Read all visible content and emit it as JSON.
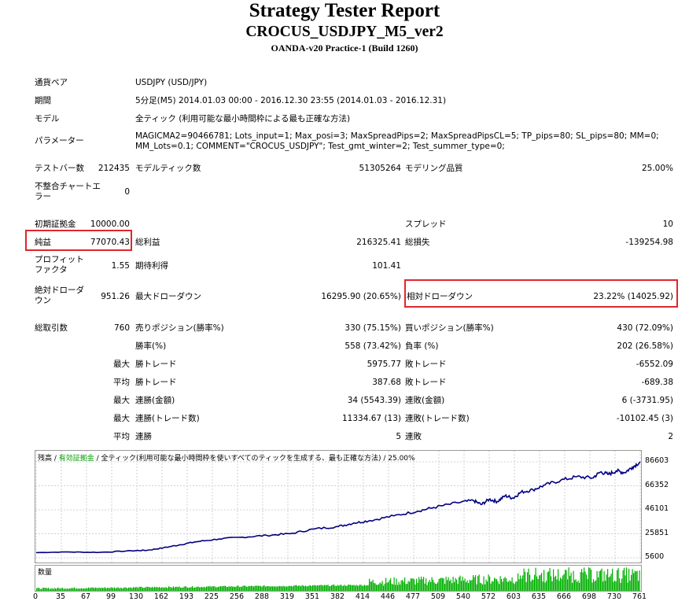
{
  "report": {
    "title": "Strategy Tester Report",
    "subtitle": "CROCUS_USDJPY_M5_ver2",
    "server": "OANDA-v20 Practice-1 (Build 1260)"
  },
  "info": {
    "pair_label": "通貨ペア",
    "pair_value": "USDJPY (USD/JPY)",
    "period_label": "期間",
    "period_value": "5分足(M5) 2014.01.03 00:00 - 2016.12.30 23:55 (2014.01.03 - 2016.12.31)",
    "model_label": "モデル",
    "model_value": "全ティック (利用可能な最小時間枠による最も正確な方法)",
    "params_label": "パラメーター",
    "params_value": "MAGICMA2=90466781; Lots_input=1; Max_posi=3; MaxSpreadPips=2; MaxSpreadPipsCL=5; TP_pips=80; SL_pips=80; MM=0; MM_Lots=0.1; COMMENT=\"CROCUS_USDJPY\"; Test_gmt_winter=2; Test_summer_type=0;"
  },
  "stats": {
    "bars_label": "テストバー数",
    "bars_value": "212435",
    "model_ticks_label": "モデルティック数",
    "model_ticks_value": "51305264",
    "quality_label": "モデリング品質",
    "quality_value": "25.00%",
    "mismatch_label": "不整合チャートエラー",
    "mismatch_value": "0",
    "deposit_label": "初期証拠金",
    "deposit_value": "10000.00",
    "spread_label": "スプレッド",
    "spread_value": "10",
    "net_label": "純益",
    "net_value": "77070.43",
    "gross_profit_label": "総利益",
    "gross_profit_value": "216325.41",
    "gross_loss_label": "総損失",
    "gross_loss_value": "-139254.98",
    "pf_label": "プロフィットファクタ",
    "pf_value": "1.55",
    "expected_label": "期待利得",
    "expected_value": "101.41",
    "abs_dd_label": "絶対ドローダウン",
    "abs_dd_value": "951.26",
    "max_dd_label": "最大ドローダウン",
    "max_dd_value": "16295.90 (20.65%)",
    "rel_dd_label": "相対ドローダウン",
    "rel_dd_value": "23.22% (14025.92)",
    "total_trades_label": "総取引数",
    "total_trades_value": "760",
    "short_label": "売りポジション(勝率%)",
    "short_value": "330 (75.15%)",
    "long_label": "買いポジション(勝率%)",
    "long_value": "430 (72.09%)",
    "winrate_label": "勝率(%)",
    "winrate_value": "558 (73.42%)",
    "lossrate_label": "負率 (%)",
    "lossrate_value": "202 (26.58%)",
    "max": "最大",
    "avg": "平均",
    "largest_win_label": "勝トレード",
    "largest_win_value": "5975.77",
    "largest_loss_label": "敗トレード",
    "largest_loss_value": "-6552.09",
    "avg_win_label": "勝トレード",
    "avg_win_value": "387.68",
    "avg_loss_label": "敗トレード",
    "avg_loss_value": "-689.38",
    "max_consec_wins_label": "連勝(金額)",
    "max_consec_wins_value": "34 (5543.39)",
    "max_consec_losses_label": "連敗(金額)",
    "max_consec_losses_value": "6 (-3731.95)",
    "max_consec_profit_label": "連勝(トレード数)",
    "max_consec_profit_value": "11334.67 (13)",
    "max_consec_loss_label": "連敗(トレード数)",
    "max_consec_loss_value": "-10102.45 (3)",
    "avg_consec_wins_label": "連勝",
    "avg_consec_wins_value": "5",
    "avg_consec_losses_label": "連敗",
    "avg_consec_losses_value": "2"
  },
  "chart": {
    "legend_balance": "残高",
    "legend_sep": " / ",
    "legend_equity": "有効証拠金",
    "legend_rest": " / 全ティック(利用可能な最小時間枠を使いすべてのティックを生成する、最も正確な方法) / 25.00%",
    "volume_label": "数量",
    "balance_color": "#000080",
    "volume_color": "#00b000",
    "highlight_color": "#e0262c"
  },
  "chart_data": {
    "type": "line",
    "y_ticks": [
      "86603",
      "66352",
      "46101",
      "25851",
      "5600"
    ],
    "x_ticks": [
      "0",
      "35",
      "67",
      "99",
      "130",
      "162",
      "193",
      "225",
      "256",
      "288",
      "319",
      "351",
      "382",
      "414",
      "446",
      "477",
      "509",
      "540",
      "572",
      "603",
      "635",
      "666",
      "698",
      "730",
      "761"
    ],
    "ylim": [
      5600,
      86603
    ],
    "xlim": [
      0,
      760
    ],
    "series": [
      {
        "x": [
          0,
          40,
          80,
          120,
          140,
          160,
          180,
          200,
          230,
          260,
          290,
          320,
          350,
          380,
          400,
          420,
          450,
          480,
          500,
          530,
          550,
          560,
          570,
          580,
          590,
          600,
          610,
          625,
          640,
          660,
          680,
          700,
          710,
          720,
          730,
          740,
          750,
          760
        ],
        "values": [
          10000,
          10500,
          10200,
          11500,
          12000,
          14000,
          16500,
          19000,
          21500,
          23000,
          24500,
          26000,
          30000,
          32000,
          35000,
          37000,
          41000,
          45000,
          48000,
          52000,
          54000,
          50500,
          55000,
          53000,
          58000,
          56000,
          61000,
          63000,
          67000,
          71000,
          74000,
          73000,
          78000,
          76000,
          79000,
          77500,
          82000,
          86603
        ]
      }
    ]
  }
}
